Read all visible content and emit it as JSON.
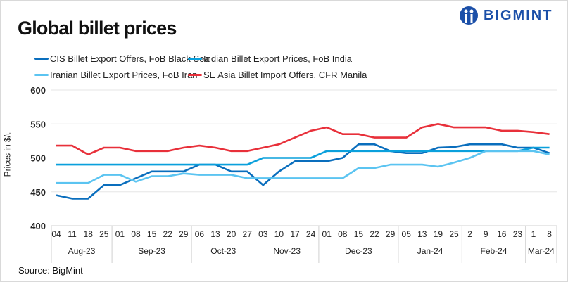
{
  "header": {
    "title": "Global billet prices",
    "brand": "BIGMINT"
  },
  "footer": {
    "source": "Source: BigMint"
  },
  "chart_data": {
    "type": "line",
    "title": "Global billet prices",
    "ylabel": "Prices in $/t",
    "xlabel": "",
    "ylim": [
      400,
      600
    ],
    "yticks": [
      400,
      450,
      500,
      550,
      600
    ],
    "grid": true,
    "legend_position": "top",
    "categories": [
      "04",
      "11",
      "18",
      "25",
      "01",
      "08",
      "15",
      "22",
      "29",
      "06",
      "13",
      "20",
      "27",
      "03",
      "10",
      "17",
      "24",
      "01",
      "08",
      "15",
      "22",
      "29",
      "05",
      "13",
      "19",
      "25",
      "2",
      "9",
      "16",
      "23",
      "1",
      "8"
    ],
    "months": [
      {
        "label": "Aug-23",
        "count": 4
      },
      {
        "label": "Sep-23",
        "count": 5
      },
      {
        "label": "Oct-23",
        "count": 4
      },
      {
        "label": "Nov-23",
        "count": 4
      },
      {
        "label": "Dec-23",
        "count": 5
      },
      {
        "label": "Jan-24",
        "count": 4
      },
      {
        "label": "Feb-24",
        "count": 4
      },
      {
        "label": "Mar-24",
        "count": 2
      }
    ],
    "series": [
      {
        "name": "CIS Billet Export Offers, FoB Black Sea",
        "color": "#0a6ebd",
        "values": [
          445,
          440,
          440,
          460,
          460,
          470,
          480,
          480,
          480,
          490,
          490,
          480,
          480,
          460,
          480,
          495,
          495,
          495,
          500,
          520,
          520,
          510,
          507,
          507,
          515,
          516,
          520,
          520,
          520,
          515,
          515,
          507
        ]
      },
      {
        "name": "Indian Billet Export Prices, FoB India",
        "color": "#0aa0dc",
        "values": [
          490,
          490,
          490,
          490,
          490,
          490,
          490,
          490,
          490,
          490,
          490,
          490,
          490,
          500,
          500,
          500,
          500,
          510,
          510,
          510,
          510,
          510,
          510,
          510,
          510,
          510,
          510,
          510,
          510,
          510,
          515,
          515
        ]
      },
      {
        "name": "Iranian Billet Export Prices, FoB Iran",
        "color": "#5bc4f1",
        "values": [
          463,
          463,
          463,
          475,
          475,
          465,
          473,
          473,
          477,
          475,
          475,
          475,
          470,
          470,
          470,
          470,
          470,
          470,
          470,
          485,
          485,
          490,
          490,
          490,
          487,
          493,
          500,
          510,
          510,
          510,
          510,
          505
        ]
      },
      {
        "name": "SE Asia Billet Import Offers, CFR Manila",
        "color": "#e8303a",
        "values": [
          518,
          518,
          505,
          515,
          515,
          510,
          510,
          510,
          515,
          518,
          515,
          510,
          510,
          515,
          520,
          530,
          540,
          545,
          535,
          535,
          530,
          530,
          530,
          545,
          550,
          545,
          545,
          545,
          540,
          540,
          538,
          535
        ]
      }
    ]
  }
}
